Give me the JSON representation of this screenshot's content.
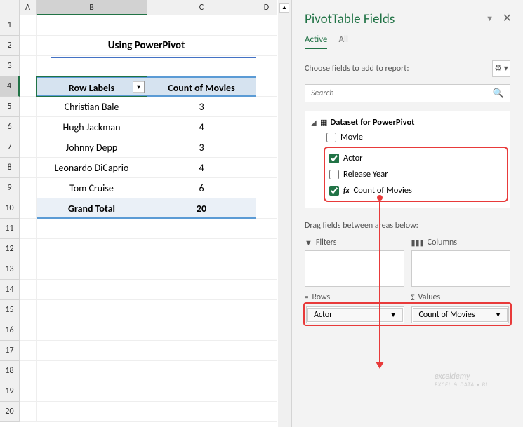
{
  "columns": [
    "A",
    "B",
    "C",
    "D"
  ],
  "row_numbers": [
    1,
    2,
    3,
    4,
    5,
    6,
    7,
    8,
    9,
    10,
    11,
    12,
    13,
    14,
    15,
    16,
    17,
    18,
    19,
    20
  ],
  "title": "Using PowerPivot",
  "pivot": {
    "header_row_label": "Row Labels",
    "header_count": "Count of Movies",
    "rows": [
      {
        "label": "Christian Bale",
        "count": "3"
      },
      {
        "label": "Hugh Jackman",
        "count": "4"
      },
      {
        "label": "Johnny Depp",
        "count": "3"
      },
      {
        "label": "Leonardo DiCaprio",
        "count": "4"
      },
      {
        "label": "Tom Cruise",
        "count": "6"
      }
    ],
    "grand_total_label": "Grand Total",
    "grand_total_value": "20"
  },
  "pane": {
    "title": "PivotTable Fields",
    "tabs": {
      "active": "Active",
      "all": "All"
    },
    "choose": "Choose fields to add to report:",
    "search_placeholder": "Search",
    "dataset": "Dataset for PowerPivot",
    "fields": {
      "movie": "Movie",
      "actor": "Actor",
      "release": "Release Year",
      "count": "Count of Movies"
    },
    "drag": "Drag fields between areas below:",
    "areas": {
      "filters": "Filters",
      "columns": "Columns",
      "rows": "Rows",
      "values": "Values"
    },
    "row_item": "Actor",
    "value_item": "Count of Movies"
  },
  "watermark": {
    "main": "exceldemy",
    "sub": "EXCEL & DATA • BI"
  }
}
